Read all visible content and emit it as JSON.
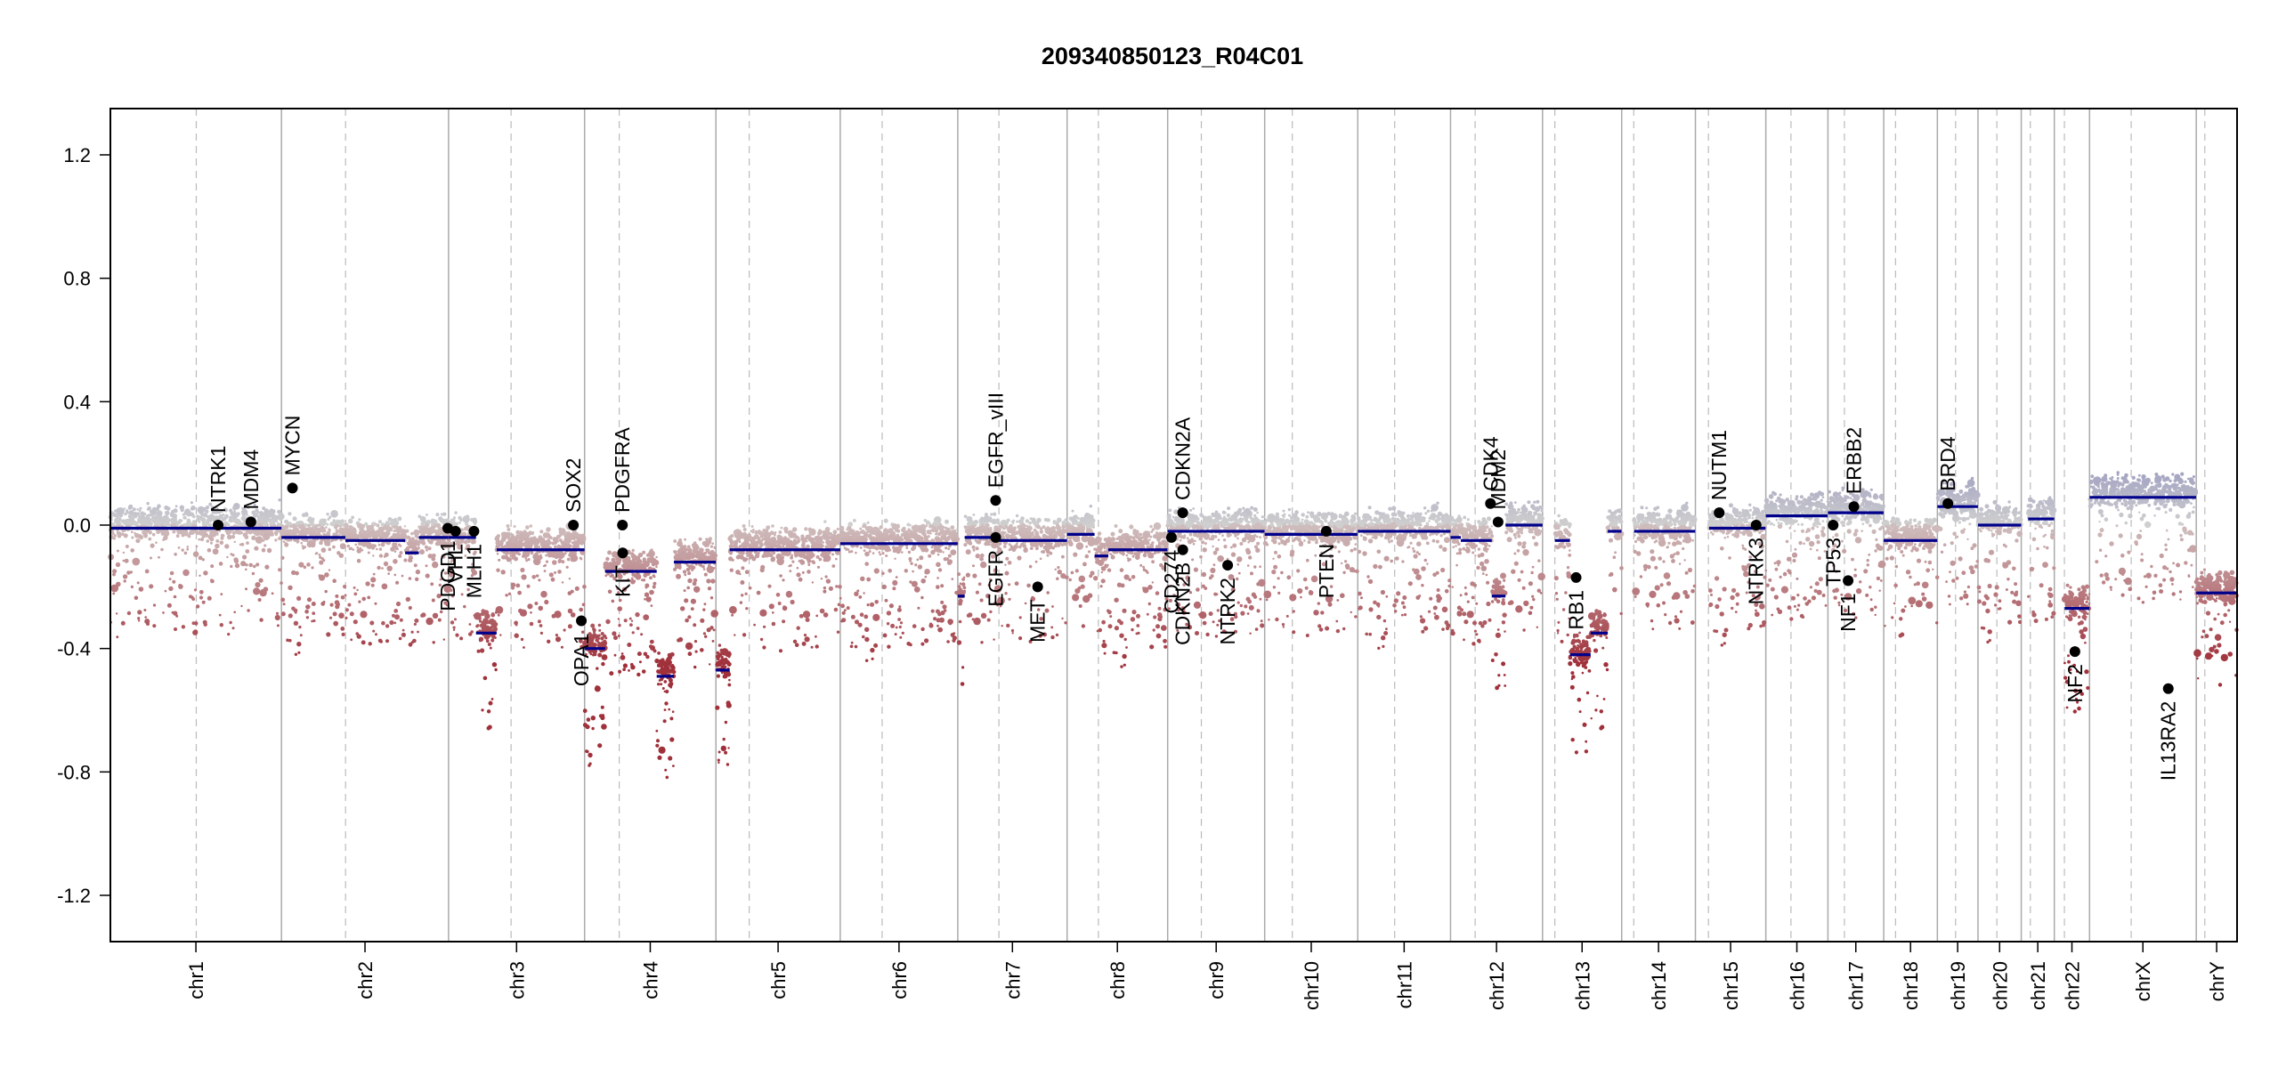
{
  "chart_data": {
    "type": "scatter",
    "title": "209340850123_R04C01",
    "xlabel": "",
    "ylabel": "",
    "ylim": [
      -1.35,
      1.35
    ],
    "yticks": [
      -1.2,
      -0.8,
      -0.4,
      0.0,
      0.4,
      0.8,
      1.2
    ],
    "ytick_labels": [
      "-1.2",
      "-0.8",
      "-0.4",
      "0.0",
      "0.4",
      "0.8",
      "1.2"
    ],
    "grid": false,
    "legend": "none",
    "colors": {
      "gain": "#8f8fbd",
      "neutral": "#cfcfcf",
      "loss": "#a0303a",
      "segment": "#00008b",
      "gene_point": "#000000",
      "chrom_border": "#aaaaaa",
      "centromere": "#bbbbbb"
    },
    "chromosomes": [
      {
        "name": "chr1",
        "len": 249.0,
        "cen": 125.0
      },
      {
        "name": "chr2",
        "len": 243.2,
        "cen": 93.3
      },
      {
        "name": "chr3",
        "len": 198.0,
        "cen": 91.0
      },
      {
        "name": "chr4",
        "len": 191.2,
        "cen": 50.4
      },
      {
        "name": "chr5",
        "len": 180.9,
        "cen": 48.4
      },
      {
        "name": "chr6",
        "len": 171.1,
        "cen": 61.0
      },
      {
        "name": "chr7",
        "len": 159.1,
        "cen": 59.9
      },
      {
        "name": "chr8",
        "len": 146.4,
        "cen": 45.6
      },
      {
        "name": "chr9",
        "len": 141.2,
        "cen": 49.0
      },
      {
        "name": "chr10",
        "len": 135.5,
        "cen": 40.2
      },
      {
        "name": "chr11",
        "len": 135.0,
        "cen": 53.7
      },
      {
        "name": "chr12",
        "len": 133.9,
        "cen": 35.8
      },
      {
        "name": "chr13",
        "len": 115.2,
        "cen": 17.9
      },
      {
        "name": "chr14",
        "len": 107.3,
        "cen": 17.6
      },
      {
        "name": "chr15",
        "len": 102.5,
        "cen": 19.0
      },
      {
        "name": "chr16",
        "len": 90.4,
        "cen": 36.6
      },
      {
        "name": "chr17",
        "len": 81.2,
        "cen": 24.0
      },
      {
        "name": "chr18",
        "len": 78.1,
        "cen": 17.2
      },
      {
        "name": "chr19",
        "len": 59.1,
        "cen": 26.5
      },
      {
        "name": "chr20",
        "len": 63.0,
        "cen": 27.5
      },
      {
        "name": "chr21",
        "len": 48.1,
        "cen": 13.2
      },
      {
        "name": "chr22",
        "len": 51.3,
        "cen": 14.7
      },
      {
        "name": "chrX",
        "len": 155.3,
        "cen": 60.6
      },
      {
        "name": "chrY",
        "len": 59.4,
        "cen": 12.5
      }
    ],
    "segments": [
      {
        "chr": "chr1",
        "start": 0,
        "end": 205,
        "value": -0.01
      },
      {
        "chr": "chr1",
        "start": 205,
        "end": 230,
        "value": -0.01
      },
      {
        "chr": "chr1",
        "start": 230,
        "end": 249,
        "value": -0.01
      },
      {
        "chr": "chr2",
        "start": 0,
        "end": 93,
        "value": -0.04
      },
      {
        "chr": "chr2",
        "start": 93,
        "end": 180,
        "value": -0.05
      },
      {
        "chr": "chr2",
        "start": 180,
        "end": 200,
        "value": -0.09
      },
      {
        "chr": "chr2",
        "start": 200,
        "end": 243,
        "value": -0.04
      },
      {
        "chr": "chr3",
        "start": 0,
        "end": 40,
        "value": -0.04
      },
      {
        "chr": "chr3",
        "start": 40,
        "end": 70,
        "value": -0.35
      },
      {
        "chr": "chr3",
        "start": 70,
        "end": 198,
        "value": -0.08
      },
      {
        "chr": "chr4",
        "start": 0,
        "end": 30,
        "value": -0.4
      },
      {
        "chr": "chr4",
        "start": 30,
        "end": 60,
        "value": -0.15
      },
      {
        "chr": "chr4",
        "start": 60,
        "end": 105,
        "value": -0.15
      },
      {
        "chr": "chr4",
        "start": 105,
        "end": 130,
        "value": -0.49
      },
      {
        "chr": "chr4",
        "start": 130,
        "end": 191,
        "value": -0.12
      },
      {
        "chr": "chr5",
        "start": 0,
        "end": 20,
        "value": -0.47
      },
      {
        "chr": "chr5",
        "start": 20,
        "end": 181,
        "value": -0.08
      },
      {
        "chr": "chr6",
        "start": 0,
        "end": 171,
        "value": -0.06
      },
      {
        "chr": "chr7",
        "start": 0,
        "end": 10,
        "value": -0.23
      },
      {
        "chr": "chr7",
        "start": 10,
        "end": 60,
        "value": -0.04
      },
      {
        "chr": "chr7",
        "start": 60,
        "end": 159,
        "value": -0.05
      },
      {
        "chr": "chr8",
        "start": 0,
        "end": 40,
        "value": -0.03
      },
      {
        "chr": "chr8",
        "start": 40,
        "end": 60,
        "value": -0.1
      },
      {
        "chr": "chr8",
        "start": 60,
        "end": 146,
        "value": -0.08
      },
      {
        "chr": "chr9",
        "start": 0,
        "end": 141,
        "value": -0.02
      },
      {
        "chr": "chr10",
        "start": 0,
        "end": 135,
        "value": -0.03
      },
      {
        "chr": "chr11",
        "start": 0,
        "end": 135,
        "value": -0.02
      },
      {
        "chr": "chr12",
        "start": 0,
        "end": 15,
        "value": -0.04
      },
      {
        "chr": "chr12",
        "start": 15,
        "end": 60,
        "value": -0.05
      },
      {
        "chr": "chr12",
        "start": 60,
        "end": 80,
        "value": -0.23
      },
      {
        "chr": "chr12",
        "start": 80,
        "end": 134,
        "value": 0.0
      },
      {
        "chr": "chr13",
        "start": 18,
        "end": 40,
        "value": -0.05
      },
      {
        "chr": "chr13",
        "start": 40,
        "end": 70,
        "value": -0.42
      },
      {
        "chr": "chr13",
        "start": 70,
        "end": 95,
        "value": -0.35
      },
      {
        "chr": "chr13",
        "start": 95,
        "end": 115,
        "value": -0.02
      },
      {
        "chr": "chr14",
        "start": 18,
        "end": 107,
        "value": -0.02
      },
      {
        "chr": "chr15",
        "start": 20,
        "end": 102,
        "value": -0.01
      },
      {
        "chr": "chr16",
        "start": 0,
        "end": 90,
        "value": 0.03
      },
      {
        "chr": "chr17",
        "start": 0,
        "end": 81,
        "value": 0.04
      },
      {
        "chr": "chr18",
        "start": 0,
        "end": 40,
        "value": -0.05
      },
      {
        "chr": "chr18",
        "start": 40,
        "end": 78,
        "value": -0.05
      },
      {
        "chr": "chr19",
        "start": 0,
        "end": 59,
        "value": 0.06
      },
      {
        "chr": "chr20",
        "start": 0,
        "end": 63,
        "value": 0.0
      },
      {
        "chr": "chr21",
        "start": 10,
        "end": 48,
        "value": 0.02
      },
      {
        "chr": "chr22",
        "start": 15,
        "end": 51,
        "value": -0.27
      },
      {
        "chr": "chrX",
        "start": 0,
        "end": 155,
        "value": 0.09
      },
      {
        "chr": "chrY",
        "start": 0,
        "end": 59,
        "value": -0.22
      }
    ],
    "genes": [
      {
        "name": "NTRK1",
        "chr": "chr1",
        "pos": 156.8,
        "value": 0.0,
        "label": "up"
      },
      {
        "name": "MDM4",
        "chr": "chr1",
        "pos": 204.5,
        "value": 0.01,
        "label": "up"
      },
      {
        "name": "MYCN",
        "chr": "chr2",
        "pos": 16.0,
        "value": 0.12,
        "label": "up"
      },
      {
        "name": "PDGD1",
        "chr": "chr2",
        "pos": 242.0,
        "value": -0.01,
        "label": "down"
      },
      {
        "name": "VHL",
        "chr": "chr3",
        "pos": 10.2,
        "value": -0.02,
        "label": "down"
      },
      {
        "name": "MLH1",
        "chr": "chr3",
        "pos": 37.0,
        "value": -0.02,
        "label": "down"
      },
      {
        "name": "SOX2",
        "chr": "chr3",
        "pos": 181.7,
        "value": 0.0,
        "label": "up"
      },
      {
        "name": "OPA1",
        "chr": "chr3",
        "pos": 193.3,
        "value": -0.31,
        "label": "down"
      },
      {
        "name": "PDGFRA",
        "chr": "chr4",
        "pos": 55.1,
        "value": 0.0,
        "label": "up"
      },
      {
        "name": "KIT",
        "chr": "chr4",
        "pos": 55.5,
        "value": -0.09,
        "label": "down"
      },
      {
        "name": "EGFR_vIII",
        "chr": "chr7",
        "pos": 55.1,
        "value": 0.08,
        "label": "up"
      },
      {
        "name": "EGFR",
        "chr": "chr7",
        "pos": 55.2,
        "value": -0.04,
        "label": "down"
      },
      {
        "name": "MET",
        "chr": "chr7",
        "pos": 116.3,
        "value": -0.2,
        "label": "down"
      },
      {
        "name": "CD274",
        "chr": "chr9",
        "pos": 5.5,
        "value": -0.04,
        "label": "down"
      },
      {
        "name": "CDKN2A",
        "chr": "chr9",
        "pos": 21.9,
        "value": 0.04,
        "label": "up"
      },
      {
        "name": "CDKN2B",
        "chr": "chr9",
        "pos": 22.0,
        "value": -0.08,
        "label": "down"
      },
      {
        "name": "NTRK2",
        "chr": "chr9",
        "pos": 87.3,
        "value": -0.13,
        "label": "down"
      },
      {
        "name": "PTEN",
        "chr": "chr10",
        "pos": 89.6,
        "value": -0.02,
        "label": "down"
      },
      {
        "name": "CDK4",
        "chr": "chr12",
        "pos": 58.1,
        "value": 0.07,
        "label": "up"
      },
      {
        "name": "MDM2",
        "chr": "chr12",
        "pos": 69.2,
        "value": 0.01,
        "label": "up"
      },
      {
        "name": "RB1",
        "chr": "chr13",
        "pos": 48.9,
        "value": -0.17,
        "label": "down"
      },
      {
        "name": "NUTM1",
        "chr": "chr15",
        "pos": 34.6,
        "value": 0.04,
        "label": "up"
      },
      {
        "name": "NTRK3",
        "chr": "chr15",
        "pos": 88.4,
        "value": 0.0,
        "label": "down"
      },
      {
        "name": "TP53",
        "chr": "chr17",
        "pos": 7.6,
        "value": 0.0,
        "label": "down"
      },
      {
        "name": "NF1",
        "chr": "chr17",
        "pos": 29.4,
        "value": -0.18,
        "label": "down"
      },
      {
        "name": "ERBB2",
        "chr": "chr17",
        "pos": 37.8,
        "value": 0.06,
        "label": "up"
      },
      {
        "name": "BRD4",
        "chr": "chr19",
        "pos": 15.3,
        "value": 0.07,
        "label": "up"
      },
      {
        "name": "NF2",
        "chr": "chr22",
        "pos": 30.0,
        "value": -0.41,
        "label": "down"
      },
      {
        "name": "IL13RA2",
        "chr": "chrX",
        "pos": 114.6,
        "value": -0.53,
        "label": "down"
      }
    ]
  }
}
